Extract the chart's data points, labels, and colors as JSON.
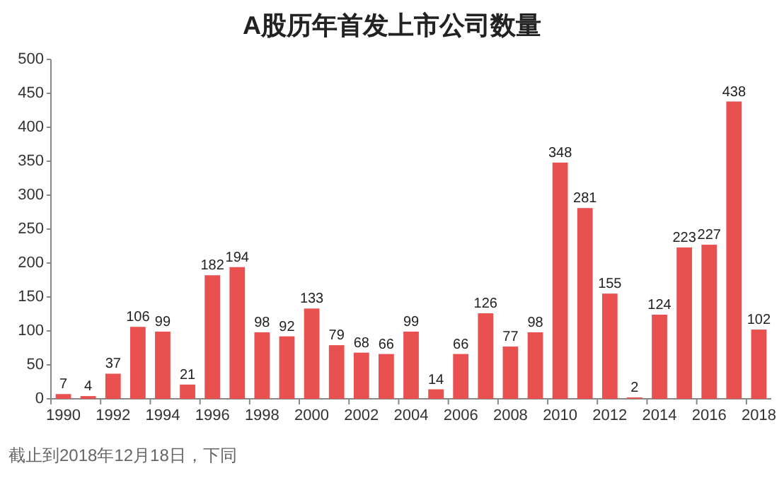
{
  "chart_data": {
    "type": "bar",
    "title": "A股历年首发上市公司数量",
    "categories": [
      "1990",
      null,
      "1992",
      null,
      "1994",
      null,
      "1996",
      null,
      "1998",
      null,
      "2000",
      null,
      "2002",
      null,
      "2004",
      null,
      "2006",
      null,
      "2008",
      null,
      "2010",
      null,
      "2012",
      null,
      "2014",
      null,
      "2016",
      null,
      "2018"
    ],
    "values": [
      7,
      4,
      37,
      106,
      99,
      21,
      182,
      194,
      98,
      92,
      133,
      79,
      68,
      66,
      99,
      14,
      66,
      126,
      77,
      98,
      348,
      281,
      155,
      2,
      124,
      223,
      227,
      438,
      102
    ],
    "color": "#e8514f",
    "ylim": [
      0,
      500
    ],
    "yticks": [
      0,
      50,
      100,
      150,
      200,
      250,
      300,
      350,
      400,
      450,
      500
    ],
    "grid": false,
    "data_labels": true,
    "annotations": [
      "截止到2018年12月18日，下同"
    ]
  }
}
